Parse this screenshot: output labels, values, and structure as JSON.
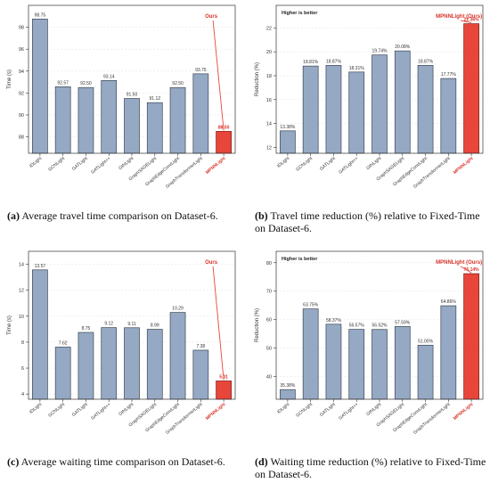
{
  "colors": {
    "bar": "#95a9c4",
    "bar_edge": "#3c4653",
    "ours": "#e8463b",
    "ours_edge": "#7a1a12",
    "text_red": "#d9342a",
    "grid": "#e6e6e6"
  },
  "captions": [
    {
      "label": "(a)",
      "text": "Average travel time comparison on Dataset-6."
    },
    {
      "label": "(b)",
      "text": "Travel time reduction (%) relative to Fixed-Time on Dataset-6."
    },
    {
      "label": "(c)",
      "text": "Average waiting time comparison on Dataset-6."
    },
    {
      "label": "(d)",
      "text": "Waiting time reduction (%) relative to Fixed-Time on Dataset-6."
    }
  ],
  "chart_data": [
    {
      "type": "bar",
      "ylabel": "Time (s)",
      "ylim": [
        86.5,
        100
      ],
      "yticks": [
        88,
        90,
        92,
        94,
        96,
        98
      ],
      "grid": true,
      "categories": [
        "IDLight",
        "GCNLight",
        "GATLight",
        "GATLight++",
        "GINLight",
        "GraphSAGELight",
        "GraphEdgeConvLight",
        "GraphTransformerLight",
        "MPNNLight"
      ],
      "values": [
        98.75,
        92.57,
        92.5,
        93.14,
        91.5,
        91.12,
        92.5,
        93.75,
        88.5
      ],
      "labels": [
        "98.75",
        "92.57",
        "92.50",
        "93.14",
        "91.50",
        "91.12",
        "92.50",
        "93.75",
        "88.50"
      ],
      "highlight_index": 8,
      "annotation": "Ours",
      "note": ""
    },
    {
      "type": "bar",
      "ylabel": "Reduction (%)",
      "ylim": [
        11.5,
        23.9
      ],
      "yticks": [
        12,
        14,
        16,
        18,
        20,
        22
      ],
      "grid": true,
      "categories": [
        "IDLight",
        "GCNLight",
        "GATLight",
        "GATLight++",
        "GINLight",
        "GraphSAGELight",
        "GraphEdgeConvLight",
        "GraphTransformerLight",
        "MPNNLight"
      ],
      "values": [
        13.38,
        18.81,
        18.87,
        18.31,
        19.74,
        20.08,
        18.87,
        17.77,
        22.36
      ],
      "labels": [
        "13.38%",
        "18.81%",
        "18.87%",
        "18.31%",
        "19.74%",
        "20.08%",
        "18.87%",
        "17.77%",
        "22.36%"
      ],
      "highlight_index": 8,
      "annotation": "MPNNLight (Ours)",
      "note": "Higher is better"
    },
    {
      "type": "bar",
      "ylabel": "Time (s)",
      "ylim": [
        3.6,
        15
      ],
      "yticks": [
        4,
        6,
        8,
        10,
        12,
        14
      ],
      "grid": true,
      "categories": [
        "IDLight",
        "GCNLight",
        "GATLight",
        "GATLight++",
        "GINLight",
        "GraphSAGELight",
        "GraphEdgeConvLight",
        "GraphTransformerLight",
        "MPNNLight"
      ],
      "values": [
        13.57,
        7.62,
        8.75,
        9.12,
        9.11,
        8.99,
        10.29,
        7.38,
        5.01
      ],
      "labels": [
        "13.57",
        "7.62",
        "8.75",
        "9.12",
        "9.11",
        "8.99",
        "10.29",
        "7.38",
        "5.01"
      ],
      "highlight_index": 8,
      "annotation": "Ours",
      "note": ""
    },
    {
      "type": "bar",
      "ylabel": "Reduction (%)",
      "ylim": [
        32,
        84
      ],
      "yticks": [
        40,
        50,
        60,
        70,
        80
      ],
      "grid": true,
      "categories": [
        "IDLight",
        "GCNLight",
        "GATLight",
        "GATLight++",
        "GINLight",
        "GraphSAGELight",
        "GraphEdgeConvLight",
        "GraphTransformerLight",
        "MPNNLight"
      ],
      "values": [
        35.38,
        63.75,
        58.37,
        56.57,
        56.52,
        57.59,
        51.0,
        64.86,
        76.14
      ],
      "labels": [
        "35.38%",
        "63.75%",
        "58.37%",
        "56.57%",
        "56.52%",
        "57.59%",
        "51.00%",
        "64.86%",
        "76.14%"
      ],
      "highlight_index": 8,
      "annotation": "MPNNLight (Ours)",
      "note": "Higher is better"
    }
  ]
}
